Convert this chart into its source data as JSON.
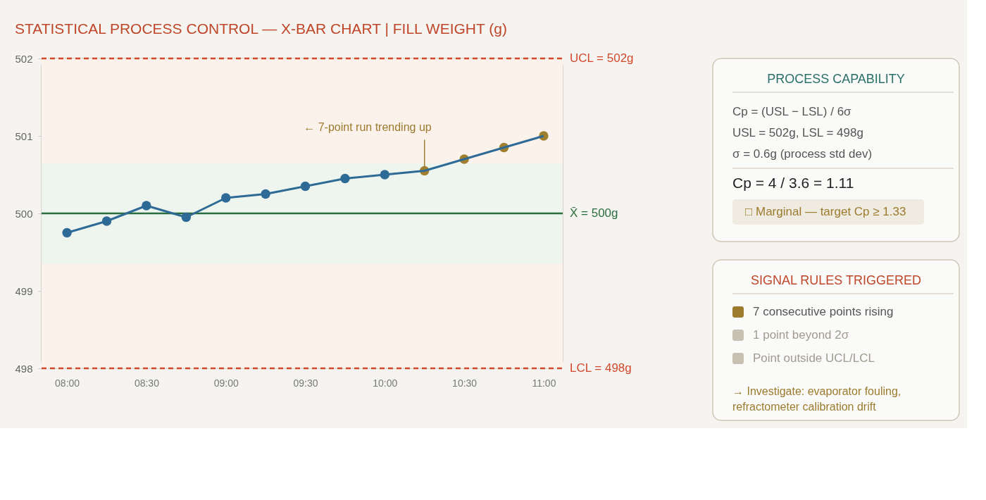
{
  "chart_data": [
    {
      "type": "line",
      "title": "STATISTICAL PROCESS CONTROL — X-BAR CHART | FILL WEIGHT (g)",
      "x": [
        8,
        8.25,
        8.5,
        8.75,
        9,
        9.25,
        9.5,
        9.75,
        10,
        10.25,
        10.5,
        10.75,
        11
      ],
      "series": [
        {
          "color": "#2e6a96",
          "colors": [
            "#2e6a96",
            "#2e6a96",
            "#2e6a96",
            "#2e6a96",
            "#2e6a96",
            "#2e6a96",
            "#2e6a96",
            "#2e6a96",
            "#2e6a96",
            "#a07f2e",
            "#a07f2e",
            "#a07f2e",
            "#a07f2e"
          ],
          "values": [
            499.75,
            499.9,
            500.1,
            499.95,
            500.2,
            500.25,
            500.35,
            500.45,
            500.5,
            500.55,
            500.7,
            500.85,
            501.0
          ]
        }
      ],
      "xlim": [
        7.84,
        11.12
      ],
      "xticks": [
        {
          "value": 8,
          "label": "08:00"
        },
        {
          "value": 8.5,
          "label": "08:30"
        },
        {
          "value": 9,
          "label": "09:00"
        },
        {
          "value": 9.5,
          "label": "09:30"
        },
        {
          "value": 10,
          "label": "10:00"
        },
        {
          "value": 10.5,
          "label": "10:30"
        },
        {
          "value": 11,
          "label": "11:00"
        }
      ],
      "ylim": [
        498,
        502
      ],
      "yticks": [
        498,
        499,
        500,
        501,
        502
      ],
      "grid": false,
      "marker": "circle",
      "line_style": "solid",
      "ref_lines": [
        {
          "axis": "y",
          "value": 502,
          "label": "UCL = 502g",
          "color": "#d24a2e",
          "line_style": "dashed"
        },
        {
          "axis": "y",
          "value": 500,
          "label": "X̄ = 500g",
          "color": "#2a6e3f",
          "line_style": "solid"
        },
        {
          "axis": "y",
          "value": 498,
          "label": "LCL = 498g",
          "color": "#d24a2e",
          "line_style": "dashed"
        }
      ],
      "bands": [
        {
          "axis": "y",
          "from": 498,
          "to": 502,
          "color": "#fbf2ec"
        },
        {
          "axis": "y",
          "from": 499.35,
          "to": 500.65,
          "color": "#eef5ee"
        }
      ],
      "annotations": [
        {
          "text": "← 7-point run trending up",
          "x": 10.25,
          "y": 500.55
        }
      ]
    },
    {
      "type": "other",
      "title": "PROCESS CAPABILITY",
      "annotations": [
        "Cp = (USL − LSL) / 6σ",
        "USL = 502g, LSL = 498g",
        "σ = 0.6g (process std dev)",
        "Cp = 4 / 3.6 = 1.11",
        "□ Marginal — target Cp ≥ 1.33"
      ]
    },
    {
      "type": "other",
      "title": "SIGNAL RULES TRIGGERED",
      "categories": [
        "7 consecutive points rising",
        "1 point beyond 2σ",
        "Point outside UCL/LCL"
      ],
      "colors": [
        "#9c7b2e",
        "#c8c0b2",
        "#c8c0b2"
      ],
      "annotations": [
        "→ Investigate: evaporator fouling, refractometer calibration drift"
      ]
    }
  ]
}
